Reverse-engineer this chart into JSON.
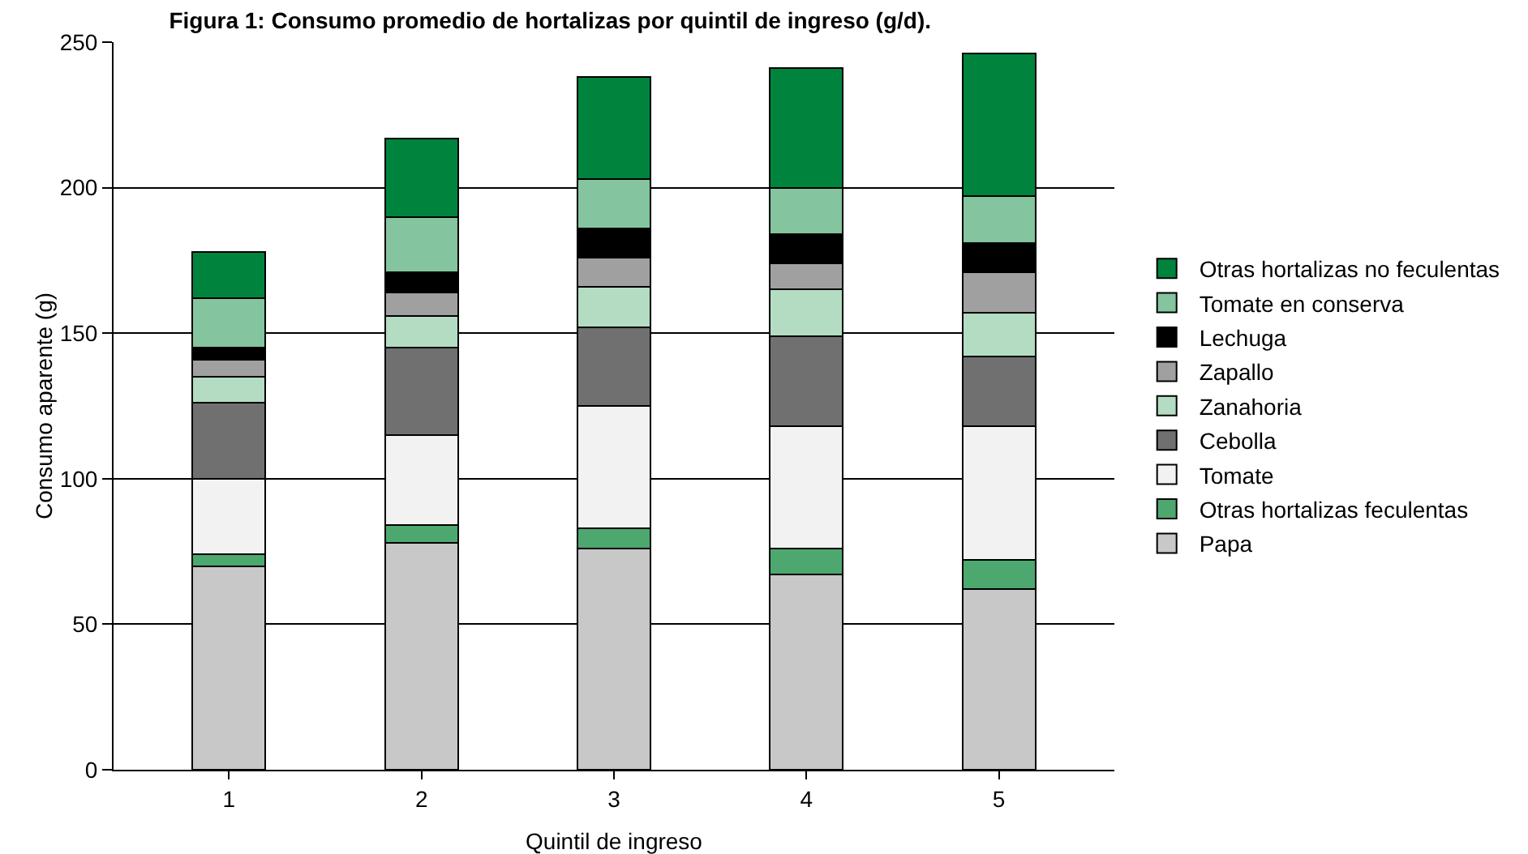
{
  "chart_data": {
    "type": "bar",
    "stacked": true,
    "title": "Figura 1: Consumo promedio de hortalizas por quintil de ingreso (g/d).",
    "xlabel": "Quintil de ingreso",
    "ylabel": "Consumo aparente (g)",
    "categories": [
      "1",
      "2",
      "3",
      "4",
      "5"
    ],
    "series": [
      {
        "name": "Papa",
        "color": "#c8c8c8",
        "values": [
          70,
          78,
          76,
          67,
          62
        ]
      },
      {
        "name": "Otras hortalizas feculentas",
        "color": "#4da870",
        "values": [
          4,
          6,
          7,
          9,
          10
        ]
      },
      {
        "name": "Tomate",
        "color": "#f2f2f2",
        "values": [
          26,
          31,
          42,
          42,
          46
        ]
      },
      {
        "name": "Cebolla",
        "color": "#707070",
        "values": [
          26,
          30,
          27,
          31,
          24
        ]
      },
      {
        "name": "Zanahoria",
        "color": "#b3dcc2",
        "values": [
          9,
          11,
          14,
          16,
          15
        ]
      },
      {
        "name": "Zapallo",
        "color": "#a0a0a0",
        "values": [
          6,
          8,
          10,
          9,
          14
        ]
      },
      {
        "name": "Lechuga",
        "color": "#000000",
        "values": [
          4,
          7,
          10,
          10,
          10
        ]
      },
      {
        "name": "Tomate en conserva",
        "color": "#84c49e",
        "values": [
          17,
          19,
          17,
          16,
          16
        ]
      },
      {
        "name": "Otras hortalizas no feculentas",
        "color": "#00843d",
        "values": [
          16,
          27,
          35,
          41,
          49
        ]
      }
    ],
    "ylim": [
      0,
      250
    ],
    "yticks": [
      0,
      50,
      100,
      150,
      200,
      250
    ],
    "grid": "y",
    "legend": "right"
  }
}
